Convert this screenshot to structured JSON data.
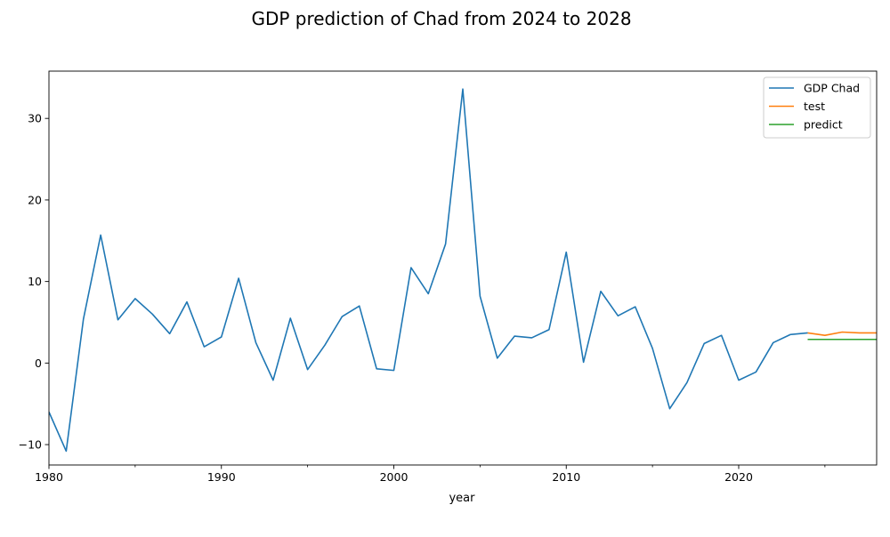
{
  "chart_data": {
    "type": "line",
    "title": "GDP prediction of Chad from 2024 to 2028",
    "xlabel": "year",
    "ylabel": "",
    "xlim": [
      1980,
      2028
    ],
    "ylim": [
      -12.5,
      35.8
    ],
    "x_ticks": [
      1980,
      1990,
      2000,
      2010,
      2020
    ],
    "x_minor_ticks": [
      1985,
      1995,
      2005,
      2015,
      2025
    ],
    "y_ticks": [
      -10,
      0,
      10,
      20,
      30
    ],
    "grid": false,
    "legend_position": "top-right",
    "series": [
      {
        "name": "GDP Chad",
        "color": "#1f77b4",
        "x": [
          1980,
          1981,
          1982,
          1983,
          1984,
          1985,
          1986,
          1987,
          1988,
          1989,
          1990,
          1991,
          1992,
          1993,
          1994,
          1995,
          1996,
          1997,
          1998,
          1999,
          2000,
          2001,
          2002,
          2003,
          2004,
          2005,
          2006,
          2007,
          2008,
          2009,
          2010,
          2011,
          2012,
          2013,
          2014,
          2015,
          2016,
          2017,
          2018,
          2019,
          2020,
          2021,
          2022,
          2023,
          2024
        ],
        "values": [
          -6.0,
          -10.8,
          5.4,
          15.7,
          5.3,
          7.9,
          6.0,
          3.6,
          7.5,
          2.0,
          3.2,
          10.4,
          2.5,
          -2.1,
          5.5,
          -0.8,
          2.2,
          5.7,
          7.0,
          -0.7,
          -0.9,
          11.7,
          8.5,
          14.6,
          33.6,
          8.2,
          0.6,
          3.3,
          3.1,
          4.1,
          13.6,
          0.1,
          8.8,
          5.8,
          6.9,
          1.8,
          -5.6,
          -2.4,
          2.4,
          3.4,
          -2.1,
          -1.1,
          2.5,
          3.5,
          3.7
        ]
      },
      {
        "name": "test",
        "color": "#ff7f0e",
        "x": [
          2024,
          2025,
          2026,
          2027,
          2028
        ],
        "values": [
          3.7,
          3.4,
          3.8,
          3.7,
          3.7
        ]
      },
      {
        "name": "predict",
        "color": "#2ca02c",
        "x": [
          2024,
          2025,
          2026,
          2027,
          2028
        ],
        "values": [
          2.9,
          2.9,
          2.9,
          2.9,
          2.9
        ]
      }
    ]
  }
}
